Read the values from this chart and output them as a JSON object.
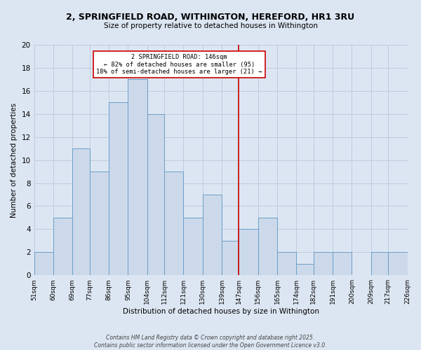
{
  "title": "2, SPRINGFIELD ROAD, WITHINGTON, HEREFORD, HR1 3RU",
  "subtitle": "Size of property relative to detached houses in Withington",
  "xlabel": "Distribution of detached houses by size in Withington",
  "ylabel": "Number of detached properties",
  "bin_edges": [
    51,
    60,
    69,
    77,
    86,
    95,
    104,
    112,
    121,
    130,
    139,
    147,
    156,
    165,
    174,
    182,
    191,
    200,
    209,
    217,
    226
  ],
  "counts": [
    2,
    5,
    11,
    9,
    15,
    17,
    14,
    9,
    5,
    7,
    3,
    4,
    5,
    2,
    1,
    2,
    2,
    0,
    2,
    2
  ],
  "bar_facecolor": "#ccd9ea",
  "bar_edgecolor": "#6b9ec8",
  "vline_x": 147,
  "vline_color": "#cc0000",
  "annotation_text": "2 SPRINGFIELD ROAD: 146sqm\n← 82% of detached houses are smaller (95)\n18% of semi-detached houses are larger (21) →",
  "annotation_box_edgecolor": "#cc0000",
  "annotation_box_facecolor": "#ffffff",
  "ylim": [
    0,
    20
  ],
  "yticks": [
    0,
    2,
    4,
    6,
    8,
    10,
    12,
    14,
    16,
    18,
    20
  ],
  "grid_color": "#b8c8dc",
  "bg_color": "#dce6f2",
  "footer1": "Contains HM Land Registry data © Crown copyright and database right 2025.",
  "footer2": "Contains public sector information licensed under the Open Government Licence v3.0.",
  "tick_labels": [
    "51sqm",
    "60sqm",
    "69sqm",
    "77sqm",
    "86sqm",
    "95sqm",
    "104sqm",
    "112sqm",
    "121sqm",
    "130sqm",
    "139sqm",
    "147sqm",
    "156sqm",
    "165sqm",
    "174sqm",
    "182sqm",
    "191sqm",
    "200sqm",
    "209sqm",
    "217sqm",
    "226sqm"
  ]
}
